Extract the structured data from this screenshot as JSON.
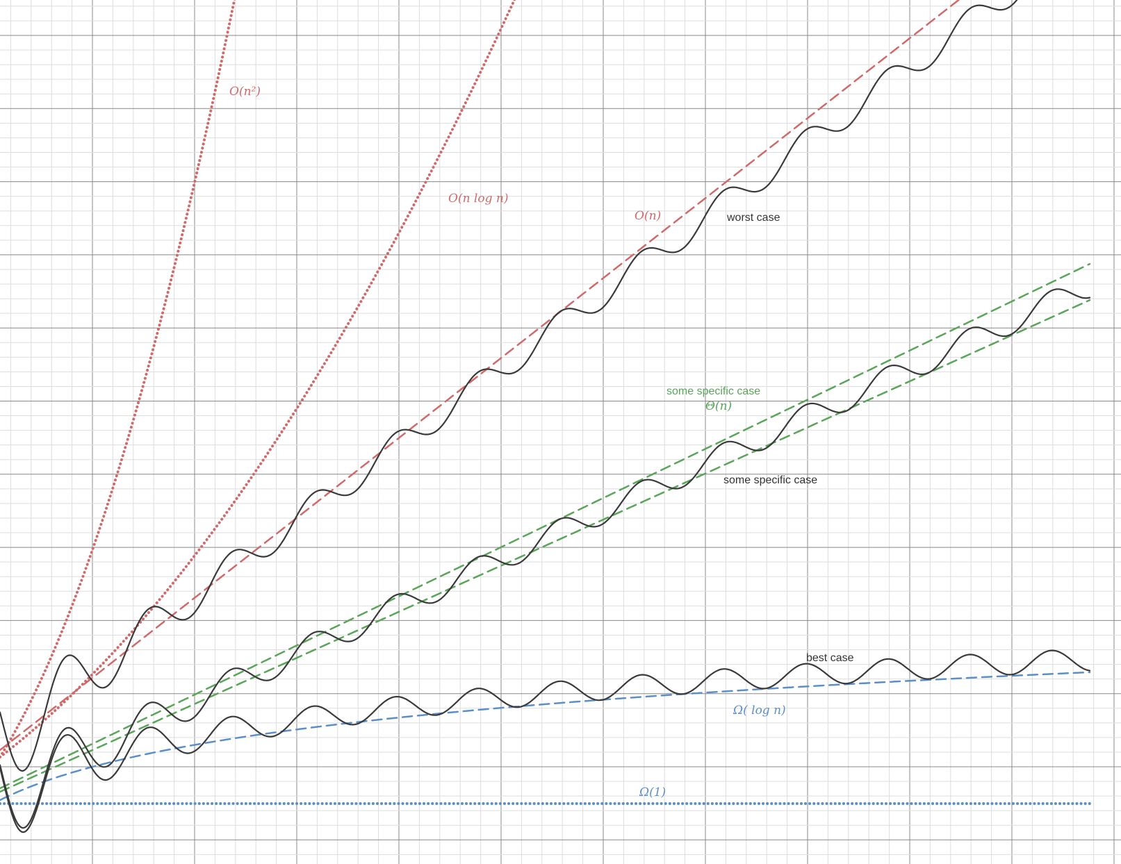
{
  "labels": {
    "o_n2": "O(n²)",
    "o_nlogn": "O(n log n)",
    "o_n": "O(n)",
    "worst": "worst case",
    "theta_case": "some specific case",
    "theta": "Θ(n)",
    "specific": "some specific case",
    "best": "best case",
    "omega_log": "Ω( log n)",
    "omega_1": "Ω(1)"
  }
}
